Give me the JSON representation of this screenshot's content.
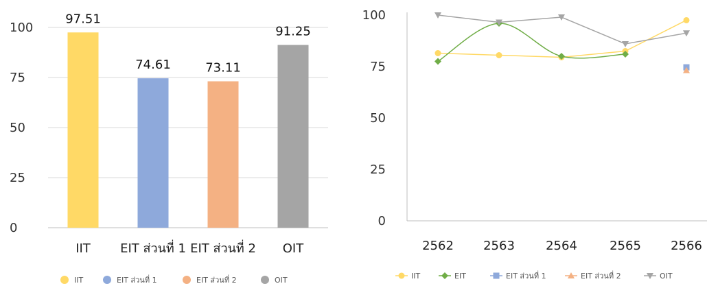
{
  "chart_data": [
    {
      "type": "bar",
      "categories": [
        "IIT",
        "EIT ส่วนที่ 1",
        "EIT ส่วนที่ 2",
        "OIT"
      ],
      "values": [
        97.51,
        74.61,
        73.11,
        91.25
      ],
      "data_labels": [
        "97.51",
        "74.61",
        "73.11",
        "91.25"
      ],
      "colors": [
        "#FFD966",
        "#8EA9DB",
        "#F4B183",
        "#A5A5A5"
      ],
      "ylim": [
        0,
        100
      ],
      "yticks": [
        "0",
        "25",
        "50",
        "75",
        "100"
      ],
      "grid": true,
      "legend": {
        "position": "bottom",
        "items": [
          "IIT",
          "EIT ส่วนที่ 1",
          "EIT ส่วนที่ 2",
          "OIT"
        ]
      }
    },
    {
      "type": "line",
      "x": [
        "2562",
        "2563",
        "2564",
        "2565",
        "2566"
      ],
      "ylim": [
        0,
        100
      ],
      "yticks": [
        "0",
        "25",
        "50",
        "75",
        "100"
      ],
      "grid": false,
      "legend_position": "bottom",
      "series": [
        {
          "name": "IIT",
          "values": [
            81.5,
            80.5,
            79.5,
            82.5,
            97.51
          ],
          "color": "#FFD966",
          "marker": "circle",
          "smooth": false
        },
        {
          "name": "EIT",
          "values": [
            77.5,
            96,
            80,
            81,
            null
          ],
          "color": "#70AD47",
          "marker": "diamond",
          "smooth": true
        },
        {
          "name": "EIT ส่วนที่ 1",
          "values": [
            null,
            null,
            null,
            null,
            74.61
          ],
          "color": "#8EA9DB",
          "marker": "square",
          "smooth": false
        },
        {
          "name": "EIT ส่วนที่ 2",
          "values": [
            null,
            null,
            null,
            null,
            73.11
          ],
          "color": "#F4B183",
          "marker": "triangle",
          "smooth": false
        },
        {
          "name": "OIT",
          "values": [
            100,
            96.5,
            99,
            86,
            91.25
          ],
          "color": "#A5A5A5",
          "marker": "triangle-down",
          "smooth": false
        }
      ]
    }
  ]
}
